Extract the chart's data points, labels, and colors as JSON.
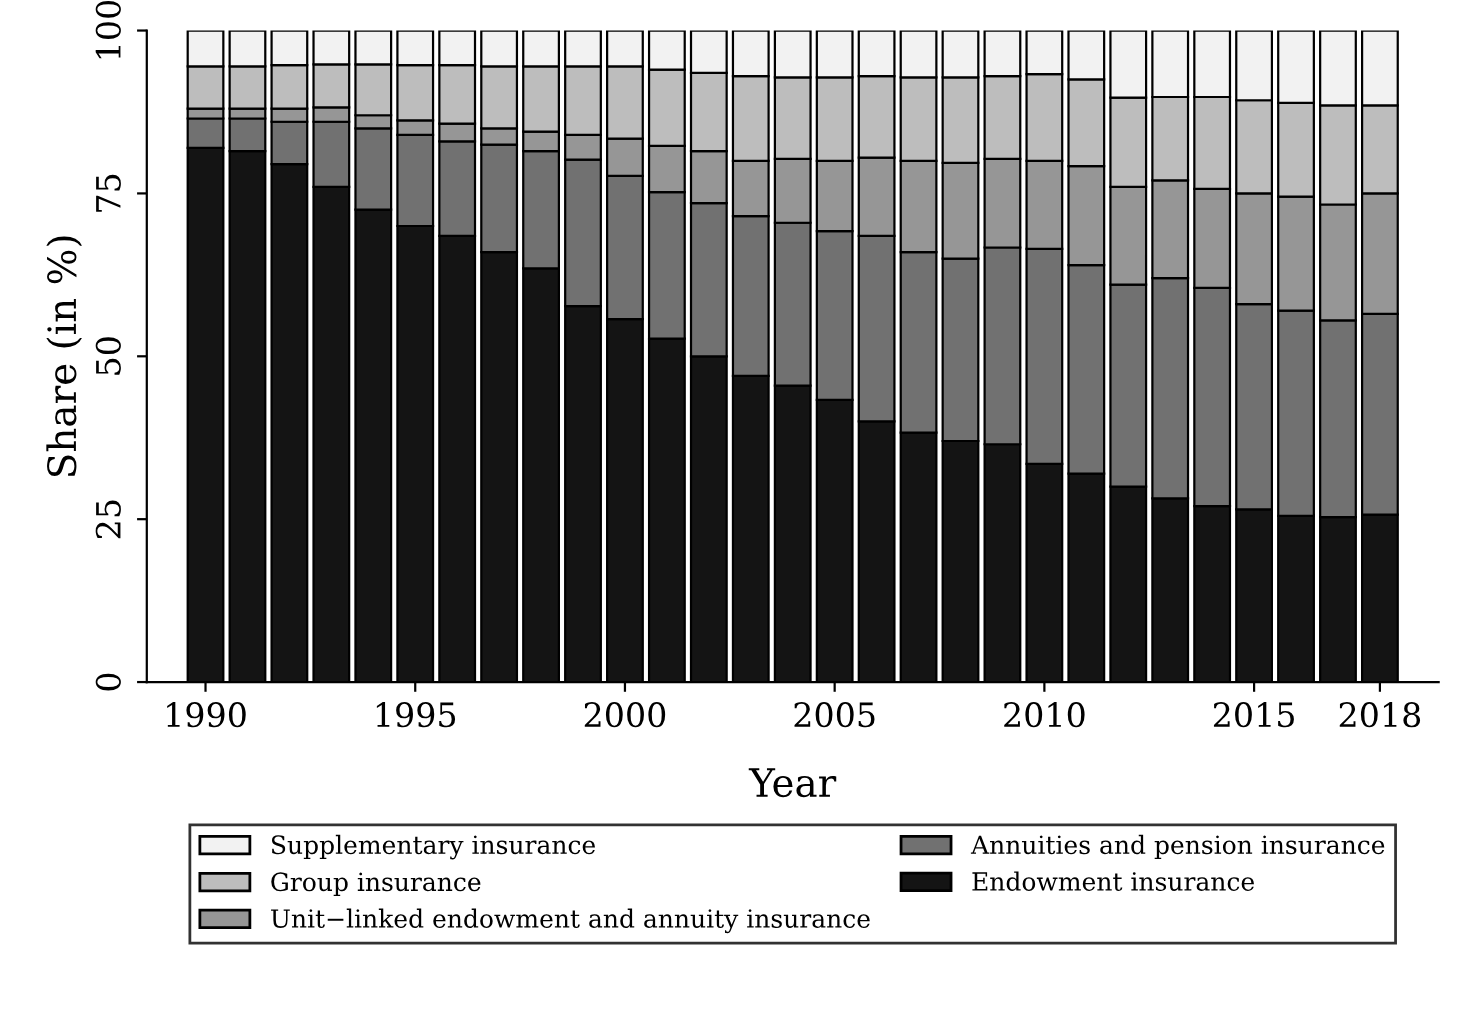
{
  "chart_data": {
    "type": "bar",
    "stacked": true,
    "xlabel": "Year",
    "ylabel": "Share (in %)",
    "x": [
      1990,
      1991,
      1992,
      1993,
      1994,
      1995,
      1996,
      1997,
      1998,
      1999,
      2000,
      2001,
      2002,
      2003,
      2004,
      2005,
      2006,
      2007,
      2008,
      2009,
      2010,
      2011,
      2012,
      2013,
      2014,
      2015,
      2016,
      2017,
      2018
    ],
    "xlim": [
      1988.6,
      2019.4
    ],
    "xticks": [
      1990,
      1995,
      2000,
      2005,
      2010,
      2015,
      2018
    ],
    "ylim": [
      0,
      100
    ],
    "yticks": [
      0,
      25,
      50,
      75,
      100
    ],
    "grid": false,
    "legend": "bottom",
    "series": [
      {
        "name": "Endowment insurance",
        "color": "#141414",
        "values": [
          82,
          81.5,
          79.5,
          76,
          72.5,
          70,
          68.5,
          66,
          63.5,
          57.7,
          55.7,
          52.7,
          50,
          47,
          45.5,
          43.3,
          40,
          38.3,
          37,
          36.5,
          33.5,
          32,
          30,
          28.2,
          27,
          26.5,
          25.5,
          25.3,
          25.7
        ]
      },
      {
        "name": "Annuities and pension insurance",
        "color": "#717171",
        "values": [
          4.5,
          5,
          6.5,
          10,
          12.5,
          14,
          14.5,
          16.5,
          18,
          22.5,
          22,
          22.5,
          23.5,
          24.5,
          25,
          25.9,
          28.5,
          27.7,
          28,
          30.2,
          33,
          32,
          31,
          33.8,
          33.5,
          31.5,
          31.5,
          30.2,
          30.8
        ]
      },
      {
        "name": "Unit−linked endowment and annuity insurance",
        "color": "#969696",
        "values": [
          1.5,
          1.5,
          2,
          2.2,
          2,
          2.2,
          2.7,
          2.5,
          3,
          3.8,
          5.7,
          7.1,
          8,
          8.5,
          9.8,
          10.8,
          12,
          14,
          14.7,
          13.6,
          13.5,
          15.2,
          15,
          15,
          15.2,
          17,
          17.5,
          17.8,
          18.5
        ]
      },
      {
        "name": "Group insurance",
        "color": "#bdbdbd",
        "values": [
          6.5,
          6.5,
          6.7,
          6.6,
          7.8,
          8.5,
          9,
          9.5,
          10,
          10.5,
          11.1,
          11.7,
          12,
          13,
          12.5,
          12.8,
          12.5,
          12.8,
          13.1,
          12.7,
          13.3,
          13.3,
          13.7,
          12.8,
          14.1,
          14.3,
          14.4,
          15.2,
          13.5
        ]
      },
      {
        "name": "Supplementary insurance",
        "color": "#f2f2f2",
        "values": [
          5.5,
          5.5,
          5.3,
          5.2,
          5.2,
          5.3,
          5.3,
          5.5,
          5.5,
          5.5,
          5.5,
          6,
          6.5,
          7,
          7.2,
          7.2,
          7,
          7.2,
          7.2,
          7,
          6.7,
          7.5,
          10.3,
          10.2,
          10.2,
          10.7,
          11.1,
          11.5,
          11.5
        ]
      }
    ]
  }
}
